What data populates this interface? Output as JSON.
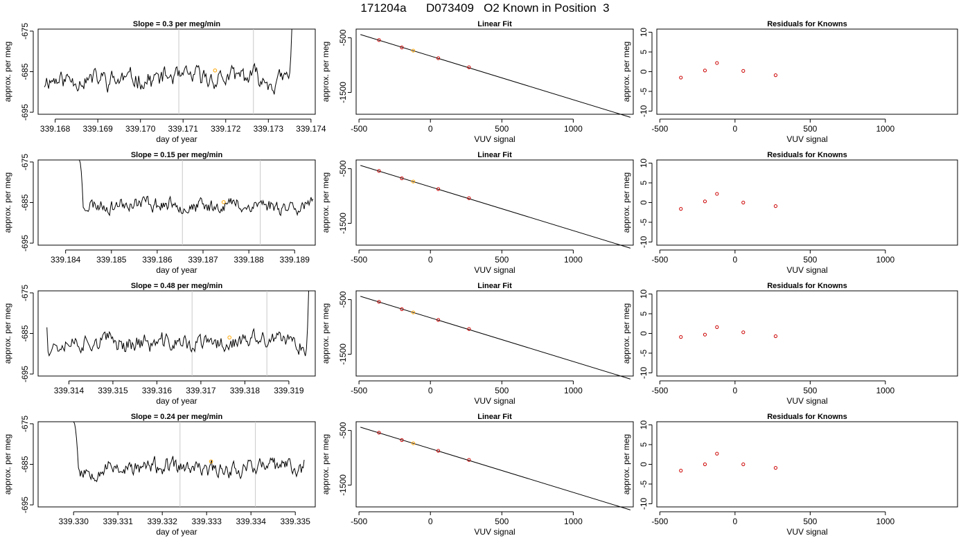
{
  "page": {
    "title": "171204a      D073409   O2 Known in Position  3"
  },
  "colors": {
    "trace": "#000000",
    "marker": "#ffa500",
    "residual": "#cc0000",
    "vline": "#c8c8c8",
    "frame": "#000000"
  },
  "chart_data": [
    {
      "type": "line",
      "row": 1,
      "title": "Slope =  0.3  per meg/min",
      "xlabel": "day of year",
      "ylabel": "approx. per meg",
      "xlim": [
        339.1676,
        339.1741
      ],
      "ylim": [
        -695.5,
        -674.5
      ],
      "xticks": [
        "339.168",
        "339.169",
        "339.170",
        "339.171",
        "339.172",
        "339.173",
        "339.174"
      ],
      "yticks": [
        "-675",
        "-685",
        "-695"
      ],
      "vlines": [
        339.1709,
        339.17265
      ],
      "trace": {
        "x_start": 339.16775,
        "x_end": 339.17355,
        "base": -686.6,
        "amp": 2.4,
        "start_value": -688.8,
        "end_value": -674.5,
        "tail_points": 3,
        "seed": 11
      },
      "marker": {
        "x": 339.17175,
        "y": -684.7
      },
      "grid": false
    },
    {
      "type": "line",
      "row": 2,
      "title": "Slope =  0.15  per meg/min",
      "xlabel": "day of year",
      "ylabel": "approx. per meg",
      "xlim": [
        339.1834,
        339.18945
      ],
      "ylim": [
        -695.5,
        -674.5
      ],
      "xticks": [
        "339.184",
        "339.185",
        "339.186",
        "339.187",
        "339.188",
        "339.189"
      ],
      "yticks": [
        "-675",
        "-685",
        "-695"
      ],
      "vlines": [
        339.18655,
        339.18825
      ],
      "trace": {
        "x_start": 339.1843,
        "x_end": 339.1894,
        "base": -685.6,
        "amp": 1.8,
        "start_value": -674.5,
        "end_value": -684.1,
        "head_points": 4,
        "seed": 23
      },
      "marker": {
        "x": 339.18745,
        "y": -684.9
      },
      "grid": false
    },
    {
      "type": "line",
      "row": 3,
      "title": "Slope =  0.48  per meg/min",
      "xlabel": "day of year",
      "ylabel": "approx. per meg",
      "xlim": [
        339.3133,
        339.3196
      ],
      "ylim": [
        -695.5,
        -674.5
      ],
      "xticks": [
        "339.314",
        "339.315",
        "339.316",
        "339.317",
        "339.318",
        "339.319"
      ],
      "yticks": [
        "-675",
        "-685",
        "-695"
      ],
      "vlines": [
        339.3168,
        339.3185
      ],
      "trace": {
        "x_start": 339.3135,
        "x_end": 339.31945,
        "base": -687.4,
        "amp": 2.3,
        "start_value": -683.5,
        "end_value": -674.5,
        "tail_points": 3,
        "seed": 37
      },
      "marker": {
        "x": 339.31765,
        "y": -686.0
      },
      "grid": false
    },
    {
      "type": "line",
      "row": 4,
      "title": "Slope =  0.24  per meg/min",
      "xlabel": "day of year",
      "ylabel": "approx. per meg",
      "xlim": [
        339.3292,
        339.33545
      ],
      "ylim": [
        -695.5,
        -674.5
      ],
      "xticks": [
        "339.330",
        "339.331",
        "339.332",
        "339.333",
        "339.334",
        "339.335"
      ],
      "yticks": [
        "-675",
        "-685",
        "-695"
      ],
      "vlines": [
        339.3324,
        339.3341
      ],
      "trace": {
        "x_start": 339.33,
        "x_end": 339.3352,
        "base": -685.9,
        "amp": 2.0,
        "start_value": -674.5,
        "end_value": -683.9,
        "head_points": 5,
        "seed": 53
      },
      "marker": {
        "x": 339.3331,
        "y": -684.3
      },
      "grid": false
    },
    {
      "type": "scatter",
      "title": "Linear Fit",
      "xlabel": "VUV signal",
      "ylabel": "approx. per meg",
      "xlim": [
        -520,
        1420
      ],
      "ylim": [
        -1900,
        -340
      ],
      "xticks": [
        "-500",
        "0",
        "500",
        "1000"
      ],
      "yticks": [
        "-500",
        "-1500"
      ],
      "fit_line": {
        "x": [
          -490,
          1400
        ],
        "y": [
          -440,
          -1955
        ]
      },
      "rows": [
        {
          "row": 1,
          "points": [
            [
              -360,
              -541
            ],
            [
              -200,
              -676
            ],
            [
              -120,
              -735
            ],
            [
              55,
              -873
            ],
            [
              270,
              -1039
            ]
          ],
          "highlight_index": 2
        },
        {
          "row": 2,
          "points": [
            [
              -360,
              -541
            ],
            [
              -200,
              -676
            ],
            [
              -120,
              -735
            ],
            [
              55,
              -873
            ],
            [
              270,
              -1039
            ]
          ],
          "highlight_index": 2
        },
        {
          "row": 3,
          "points": [
            [
              -360,
              -541
            ],
            [
              -200,
              -676
            ],
            [
              -120,
              -735
            ],
            [
              55,
              -873
            ],
            [
              270,
              -1039
            ]
          ],
          "highlight_index": 2
        },
        {
          "row": 4,
          "points": [
            [
              -360,
              -541
            ],
            [
              -200,
              -676
            ],
            [
              -120,
              -735
            ],
            [
              55,
              -873
            ],
            [
              270,
              -1039
            ]
          ],
          "highlight_index": 2
        }
      ],
      "grid": false
    },
    {
      "type": "scatter",
      "title": "Residuals for Knowns",
      "xlabel": "VUV signal",
      "ylabel": "approx. per meg",
      "xlim": [
        -520,
        1480
      ],
      "ylim": [
        -10.8,
        10.8
      ],
      "xticks": [
        "-500",
        "0",
        "500",
        "1000"
      ],
      "yticks": [
        "10",
        "5",
        "0",
        "-5",
        "-10"
      ],
      "rows": [
        {
          "row": 1,
          "points": [
            [
              -360,
              -1.5
            ],
            [
              -200,
              0.3
            ],
            [
              -120,
              2.2
            ],
            [
              55,
              0.2
            ],
            [
              270,
              -0.9
            ]
          ]
        },
        {
          "row": 2,
          "points": [
            [
              -360,
              -1.6
            ],
            [
              -200,
              0.3
            ],
            [
              -120,
              2.2
            ],
            [
              55,
              0.0
            ],
            [
              270,
              -0.9
            ]
          ]
        },
        {
          "row": 3,
          "points": [
            [
              -360,
              -0.9
            ],
            [
              -200,
              -0.3
            ],
            [
              -120,
              1.6
            ],
            [
              55,
              0.3
            ],
            [
              270,
              -0.7
            ]
          ]
        },
        {
          "row": 4,
          "points": [
            [
              -360,
              -1.6
            ],
            [
              -200,
              0.0
            ],
            [
              -120,
              2.7
            ],
            [
              55,
              0.0
            ],
            [
              270,
              -0.9
            ]
          ]
        }
      ],
      "grid": false
    }
  ]
}
